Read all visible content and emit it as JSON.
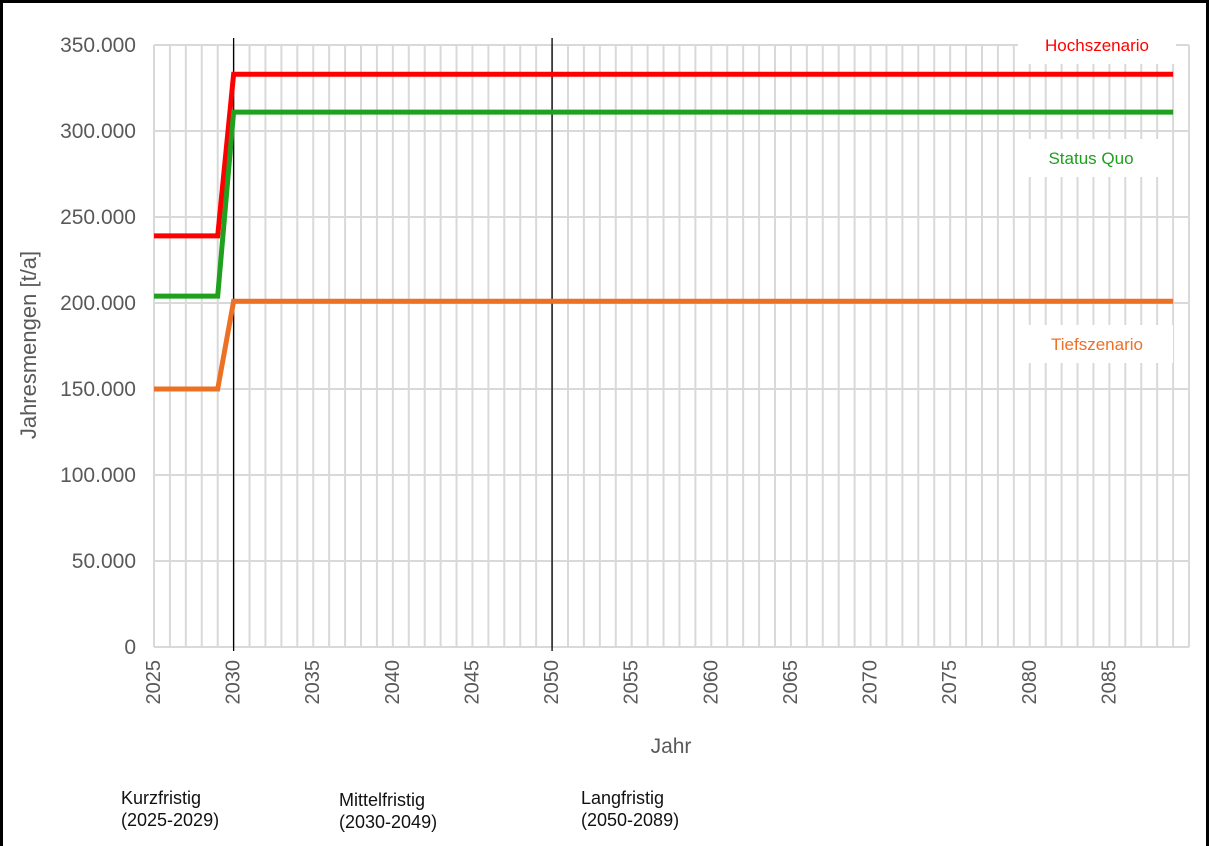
{
  "chart_data": {
    "type": "line",
    "xlabel": "Jahr",
    "ylabel": "Jahresmengen [t/a]",
    "xlim": [
      2025,
      2089
    ],
    "ylim": [
      0,
      350000
    ],
    "x_ticks": [
      "2025",
      "2030",
      "2035",
      "2040",
      "2045",
      "2050",
      "2055",
      "2060",
      "2065",
      "2070",
      "2075",
      "2080",
      "2085"
    ],
    "y_ticks": [
      "0",
      "50.000",
      "100.000",
      "150.000",
      "200.000",
      "250.000",
      "300.000",
      "350.000"
    ],
    "grid": true,
    "vertical_markers": [
      2030,
      2050
    ],
    "series": [
      {
        "name": "Hochszenario",
        "color": "#ff0000",
        "points": [
          [
            2025,
            239000
          ],
          [
            2029,
            239000
          ],
          [
            2030,
            333000
          ],
          [
            2089,
            333000
          ]
        ]
      },
      {
        "name": "Status Quo",
        "color": "#1fa01f",
        "points": [
          [
            2025,
            204000
          ],
          [
            2029,
            204000
          ],
          [
            2030,
            311000
          ],
          [
            2089,
            311000
          ]
        ]
      },
      {
        "name": "Tiefszenario",
        "color": "#ed7125",
        "points": [
          [
            2025,
            150000
          ],
          [
            2029,
            150000
          ],
          [
            2030,
            201000
          ],
          [
            2089,
            201000
          ]
        ]
      }
    ]
  },
  "periods": [
    {
      "name": "Kurzfristig",
      "range": "(2025-2029)"
    },
    {
      "name": "Mittelfristig",
      "range": "(2030-2049)"
    },
    {
      "name": "Langfristig",
      "range": "(2050-2089)"
    }
  ]
}
